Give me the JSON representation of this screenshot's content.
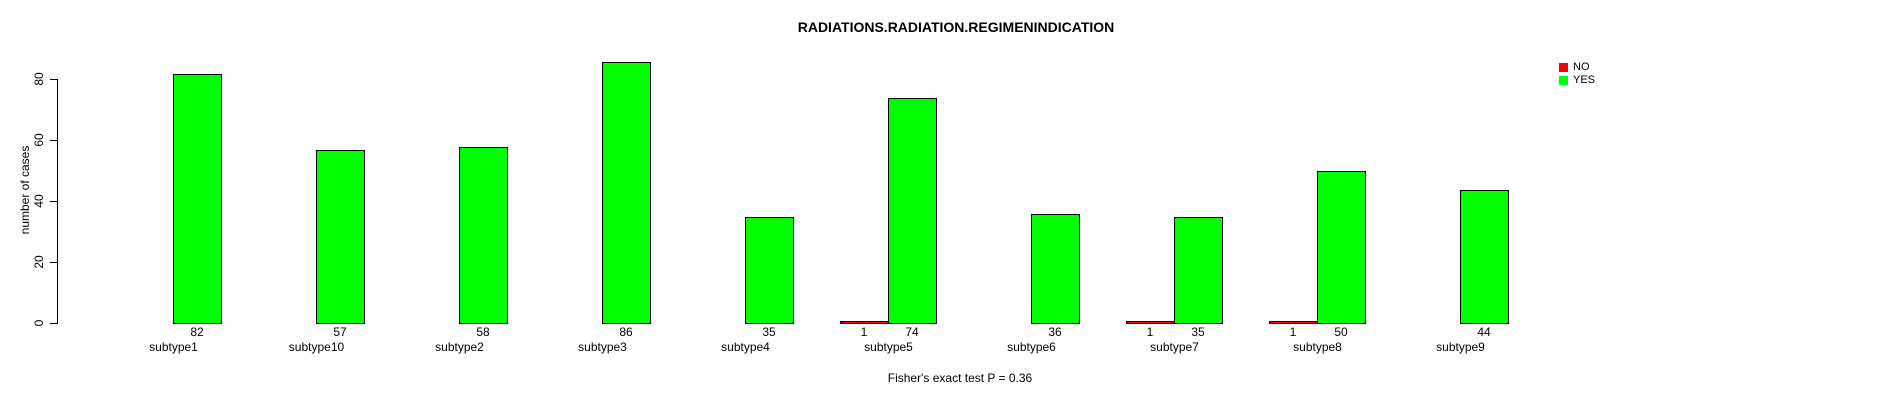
{
  "chart_data": {
    "type": "bar",
    "title": "RADIATIONS.RADIATION.REGIMENINDICATION",
    "subtitle": "Fisher's exact test P = 0.36",
    "ylabel": "number of cases",
    "xlabel": "",
    "categories": [
      "subtype1",
      "subtype10",
      "subtype2",
      "subtype3",
      "subtype4",
      "subtype5",
      "subtype6",
      "subtype7",
      "subtype8",
      "subtype9"
    ],
    "series": [
      {
        "name": "NO",
        "color": "#ff0000",
        "values": [
          0,
          0,
          0,
          0,
          0,
          1,
          0,
          1,
          1,
          0
        ]
      },
      {
        "name": "YES",
        "color": "#00ff00",
        "values": [
          82,
          57,
          58,
          86,
          35,
          74,
          36,
          35,
          50,
          44
        ]
      }
    ],
    "bar_value_labels": true,
    "yticks": [
      0,
      20,
      40,
      60,
      80
    ],
    "ylim": [
      0,
      86
    ],
    "grid": false,
    "legend_position": "top-right"
  }
}
